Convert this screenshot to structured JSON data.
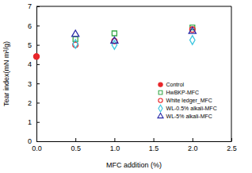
{
  "chart_data": {
    "type": "scatter",
    "x_label": "MFC addition (%)",
    "y_label": "Tear index(mN m²/g)",
    "xlim": [
      0,
      2.5
    ],
    "xticks": [
      {
        "value": 0,
        "label": "0.0"
      },
      {
        "value": 0.5,
        "label": "0.5"
      },
      {
        "value": 1,
        "label": "1.0"
      },
      {
        "value": 1.5,
        "label": "1.5"
      },
      {
        "value": 2,
        "label": "2.0"
      },
      {
        "value": 2.5,
        "label": "2.5"
      }
    ],
    "ylim": [
      0,
      7
    ],
    "yticks": [
      0,
      1,
      2,
      3,
      4,
      5,
      6,
      7
    ],
    "grid": false,
    "legend": "right",
    "series": [
      {
        "name": "Control",
        "color": "#e8262a",
        "marker": "circle_filled",
        "x": [
          0
        ],
        "values": [
          4.4
        ]
      },
      {
        "name": "HwBKP-MFC",
        "color": "#3aa84a",
        "marker": "square",
        "x": [
          0.5,
          1,
          2
        ],
        "values": [
          5.3,
          5.6,
          5.9
        ]
      },
      {
        "name": "White ledger_MFC",
        "color": "#e8262a",
        "marker": "circle",
        "x": [
          0.5,
          1,
          2
        ],
        "values": [
          5.0,
          5.2,
          5.8
        ]
      },
      {
        "name": "WL-0.5% alkali-MFC",
        "color": "#3cc6e0",
        "marker": "diamond",
        "x": [
          0.5,
          1,
          2
        ],
        "values": [
          5.05,
          5.0,
          5.25
        ]
      },
      {
        "name": "WL-5% alkali-MFC",
        "color": "#2b2ba8",
        "marker": "triangle",
        "x": [
          0.5,
          1,
          2
        ],
        "values": [
          5.55,
          5.2,
          5.7
        ]
      }
    ]
  }
}
